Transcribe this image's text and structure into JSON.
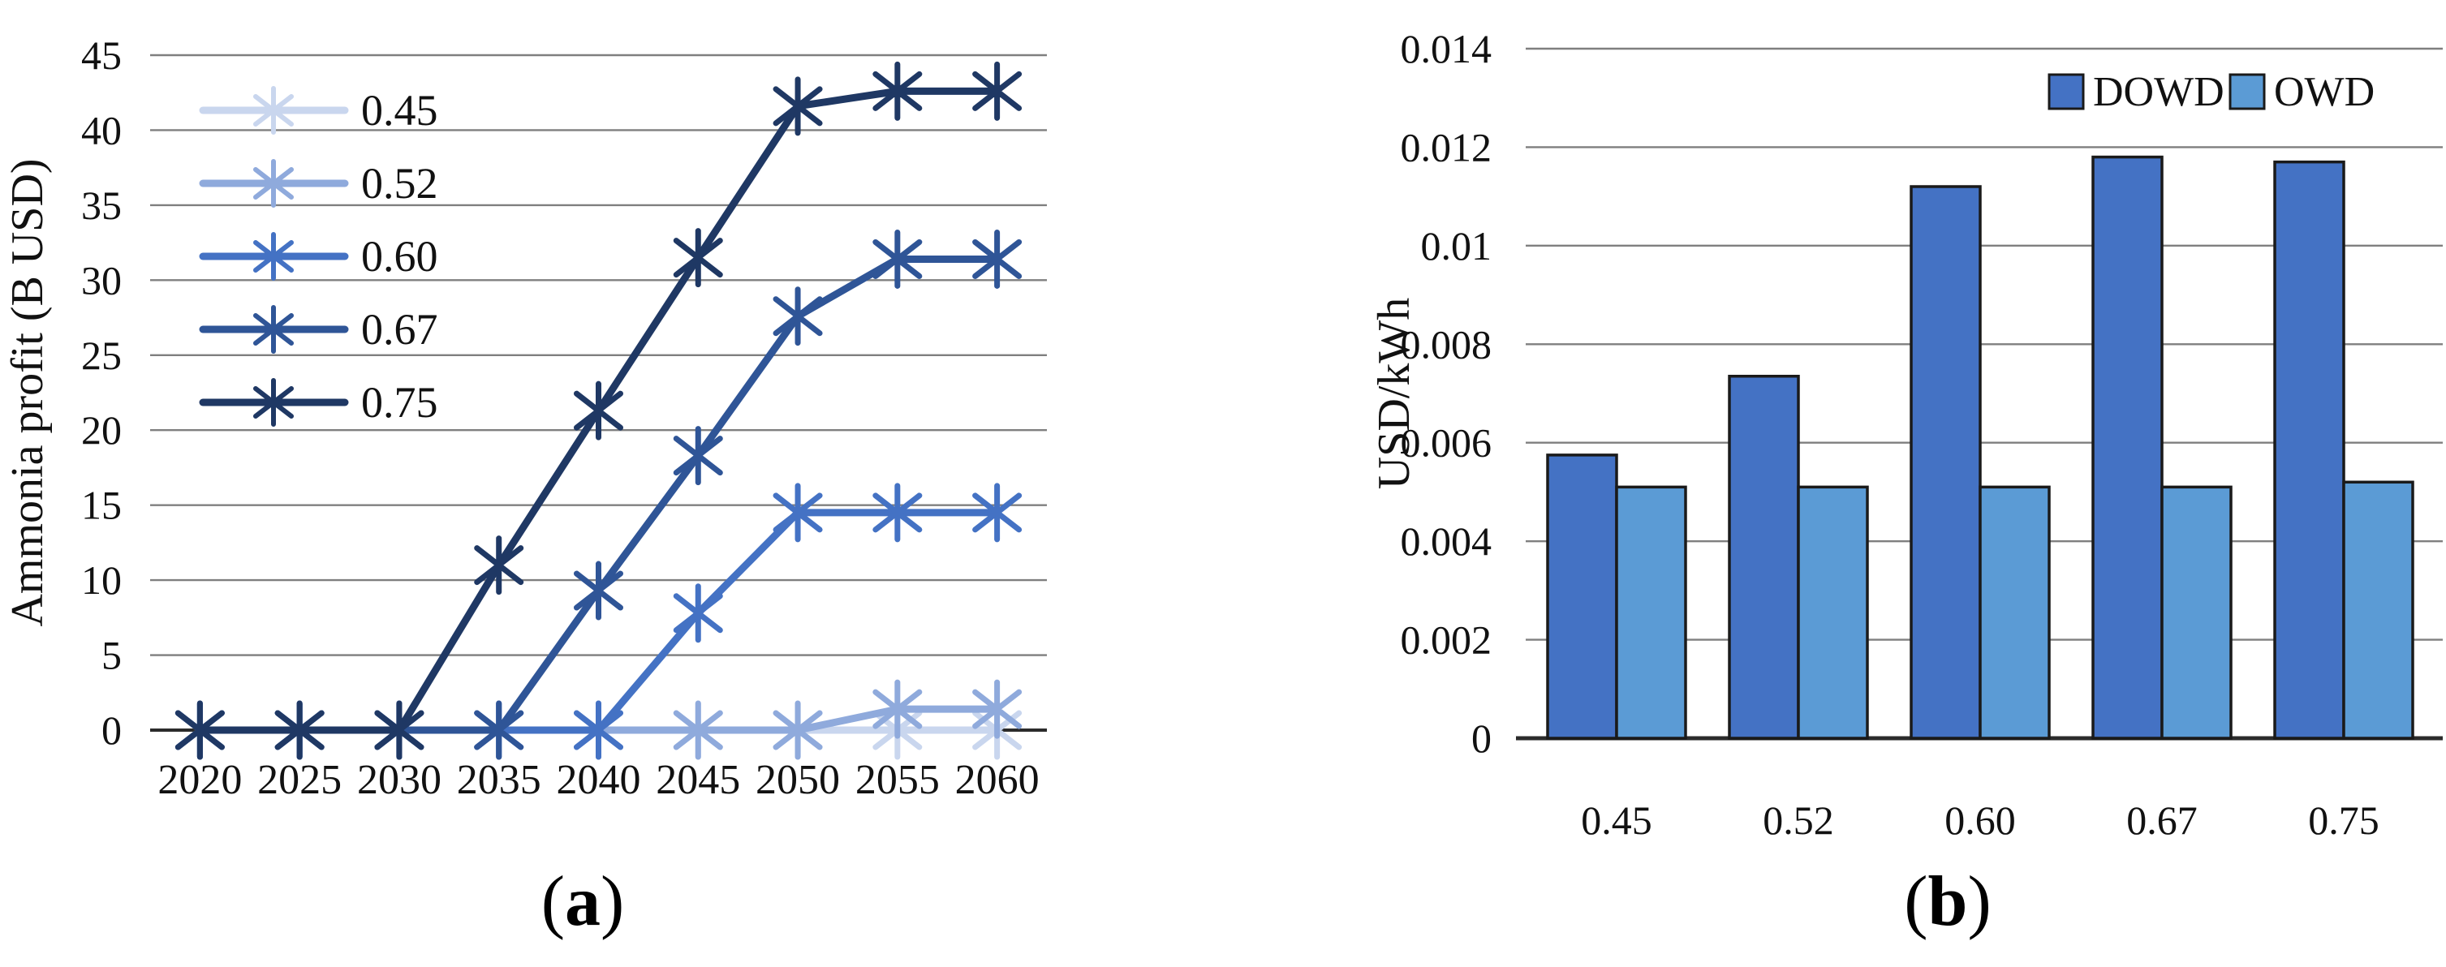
{
  "figure": {
    "caption_a": {
      "open": "(",
      "letter": "a",
      "close": ")"
    },
    "caption_b": {
      "open": "(",
      "letter": "b",
      "close": ")"
    }
  },
  "colors": {
    "grid": "#7f7f7f",
    "axis": "#2b2b2b",
    "bar_outline": "#1a1a1a",
    "series_045": "#c9d6ee",
    "series_052": "#8faadc",
    "series_060": "#4472c4",
    "series_067": "#2f5597",
    "series_075": "#1f3864",
    "dowd": "#4472c4",
    "owd": "#5b9bd5"
  },
  "chart_data": [
    {
      "id": "a",
      "type": "line",
      "title": "",
      "xlabel": "",
      "ylabel": "Ammonia profit (B USD)",
      "x": [
        2020,
        2025,
        2030,
        2035,
        2040,
        2045,
        2050,
        2055,
        2060
      ],
      "ylim": [
        0,
        45
      ],
      "yticks": [
        0,
        5,
        10,
        15,
        20,
        25,
        30,
        35,
        40,
        45
      ],
      "grid": true,
      "marker": "asterisk",
      "legend_position": "upper-left-inside",
      "series": [
        {
          "name": "0.45",
          "color": "#c9d6ee",
          "values": [
            0,
            0,
            0,
            0,
            0,
            0,
            0,
            0,
            0
          ]
        },
        {
          "name": "0.52",
          "color": "#8faadc",
          "values": [
            0,
            0,
            0,
            0,
            0,
            0,
            0,
            1.4,
            1.4
          ]
        },
        {
          "name": "0.60",
          "color": "#4472c4",
          "values": [
            0,
            0,
            0,
            0,
            0,
            7.8,
            14.5,
            14.5,
            14.5
          ]
        },
        {
          "name": "0.67",
          "color": "#2f5597",
          "values": [
            0,
            0,
            0,
            0,
            9.3,
            18.3,
            27.6,
            31.4,
            31.4
          ]
        },
        {
          "name": "0.75",
          "color": "#1f3864",
          "values": [
            0,
            0,
            0,
            11,
            21.3,
            31.5,
            41.6,
            42.6,
            42.6
          ]
        }
      ]
    },
    {
      "id": "b",
      "type": "bar",
      "title": "",
      "xlabel": "",
      "ylabel": "USD/kWh",
      "categories": [
        "0.45",
        "0.52",
        "0.60",
        "0.67",
        "0.75"
      ],
      "ylim": [
        0,
        0.014
      ],
      "yticks": [
        "0",
        "0.002",
        "0.004",
        "0.006",
        "0.008",
        "0.01",
        "0.012",
        "0.014"
      ],
      "grid": true,
      "legend_position": "upper-right-inside",
      "series": [
        {
          "name": "DOWD",
          "color": "#4472c4",
          "values": [
            0.00575,
            0.00735,
            0.0112,
            0.0118,
            0.0117
          ]
        },
        {
          "name": "OWD",
          "color": "#5b9bd5",
          "values": [
            0.0051,
            0.0051,
            0.0051,
            0.0051,
            0.0052
          ]
        }
      ]
    }
  ]
}
